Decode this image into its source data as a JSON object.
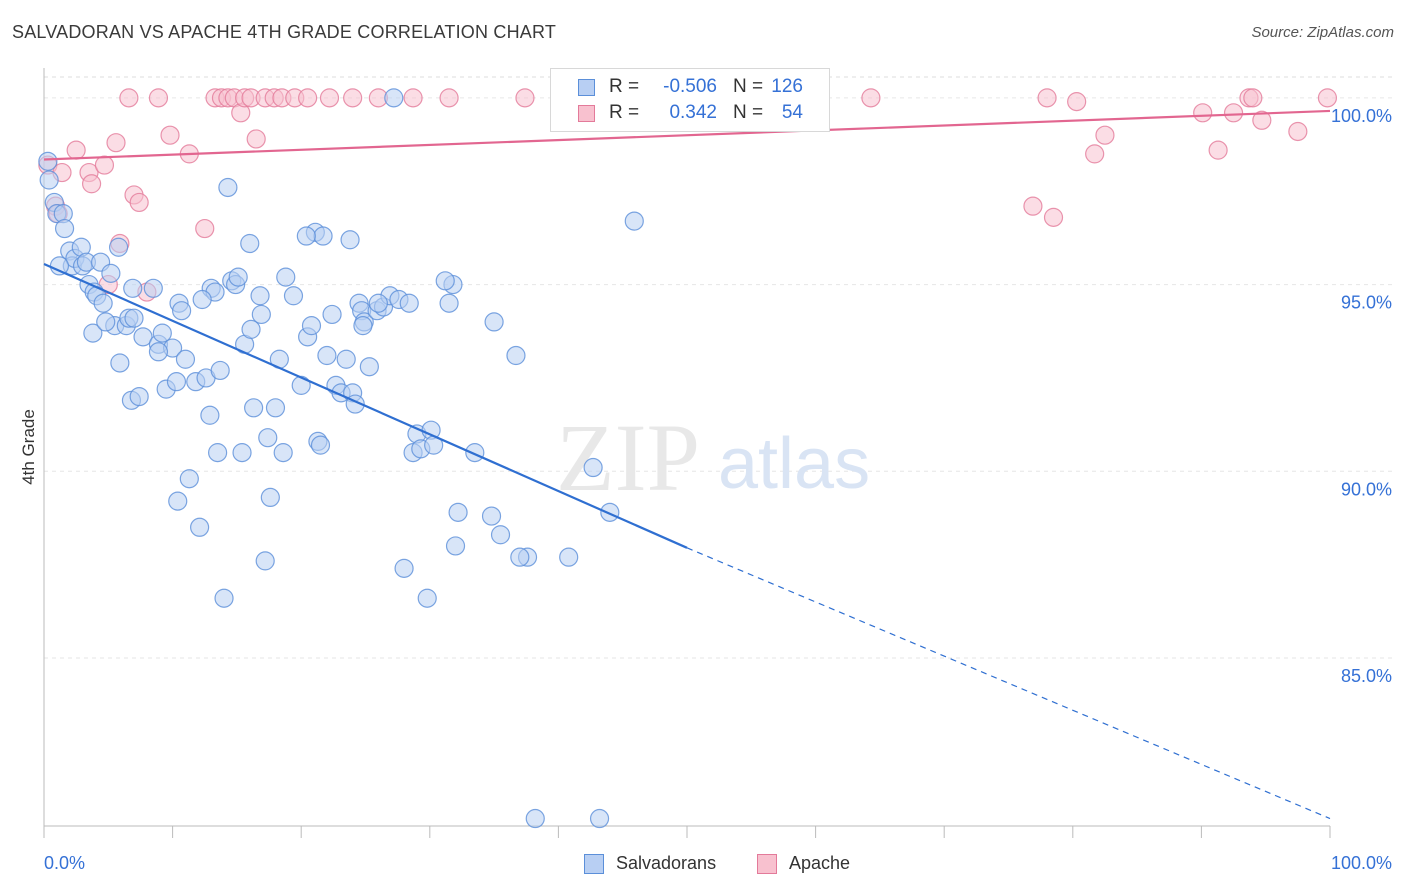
{
  "title": "SALVADORAN VS APACHE 4TH GRADE CORRELATION CHART",
  "source": "Source: ZipAtlas.com",
  "watermark": {
    "zip": "ZIP",
    "atlas": "atlas"
  },
  "legend": {
    "r_label": "R =",
    "n_label": "N =",
    "rows": [
      {
        "name": "Salvadorans",
        "r": "-0.506",
        "n": "126",
        "fill": "#b8cff3",
        "stroke": "#5b8fd9"
      },
      {
        "name": "Apache",
        "r": "0.342",
        "n": "54",
        "fill": "#f8c1cf",
        "stroke": "#e37a9a"
      }
    ]
  },
  "chart_data": {
    "type": "scatter",
    "title": "SALVADORAN VS APACHE 4TH GRADE CORRELATION CHART",
    "xlabel": "",
    "ylabel": "4th Grade",
    "xlim": [
      0,
      100
    ],
    "ylim": [
      80.5,
      100.8
    ],
    "x_tick_labels": [
      "0.0%",
      "100.0%"
    ],
    "y_ticks": [
      85,
      90,
      95,
      100
    ],
    "y_tick_labels": [
      "85.0%",
      "90.0%",
      "95.0%",
      "100.0%"
    ],
    "grid": true,
    "legend_position": "top-center",
    "series": [
      {
        "name": "Salvadorans",
        "color": "#5b8fd9",
        "fill": "#b8cff3",
        "trend": {
          "x0": 0,
          "y0": 95.55,
          "x1": 50,
          "y1": 87.95,
          "dashed_to_x": 100,
          "dashed_to_y": 80.7
        },
        "points": [
          [
            0.3,
            98.3
          ],
          [
            0.4,
            97.8
          ],
          [
            0.8,
            97.2
          ],
          [
            1.0,
            96.9
          ],
          [
            1.5,
            96.9
          ],
          [
            1.6,
            96.5
          ],
          [
            2.0,
            95.9
          ],
          [
            2.2,
            95.5
          ],
          [
            2.4,
            95.7
          ],
          [
            2.9,
            96.0
          ],
          [
            3.0,
            95.5
          ],
          [
            3.3,
            95.6
          ],
          [
            3.5,
            95.0
          ],
          [
            3.8,
            93.7
          ],
          [
            3.9,
            94.8
          ],
          [
            4.1,
            94.7
          ],
          [
            4.4,
            95.6
          ],
          [
            4.6,
            94.5
          ],
          [
            5.2,
            95.3
          ],
          [
            5.5,
            93.9
          ],
          [
            5.9,
            92.9
          ],
          [
            6.4,
            93.9
          ],
          [
            6.6,
            94.1
          ],
          [
            6.8,
            91.9
          ],
          [
            7.0,
            94.1
          ],
          [
            7.4,
            92.0
          ],
          [
            7.7,
            93.6
          ],
          [
            8.5,
            94.9
          ],
          [
            8.9,
            93.4
          ],
          [
            9.2,
            93.7
          ],
          [
            9.5,
            92.2
          ],
          [
            10.0,
            93.3
          ],
          [
            10.3,
            92.4
          ],
          [
            10.5,
            94.5
          ],
          [
            10.7,
            94.3
          ],
          [
            11.0,
            93.0
          ],
          [
            11.3,
            89.8
          ],
          [
            11.8,
            92.4
          ],
          [
            12.1,
            88.5
          ],
          [
            12.6,
            92.5
          ],
          [
            12.9,
            91.5
          ],
          [
            13.0,
            94.9
          ],
          [
            13.3,
            94.8
          ],
          [
            13.5,
            90.5
          ],
          [
            13.7,
            92.7
          ],
          [
            14.0,
            86.6
          ],
          [
            14.3,
            97.6
          ],
          [
            14.6,
            95.1
          ],
          [
            14.9,
            95.0
          ],
          [
            15.1,
            95.2
          ],
          [
            15.4,
            90.5
          ],
          [
            15.6,
            93.4
          ],
          [
            16.1,
            93.8
          ],
          [
            16.3,
            91.7
          ],
          [
            16.8,
            94.7
          ],
          [
            16.9,
            94.2
          ],
          [
            17.2,
            87.6
          ],
          [
            17.4,
            90.9
          ],
          [
            17.6,
            89.3
          ],
          [
            18.0,
            91.7
          ],
          [
            18.3,
            93.0
          ],
          [
            18.6,
            90.5
          ],
          [
            18.8,
            95.2
          ],
          [
            19.4,
            94.7
          ],
          [
            20.0,
            92.3
          ],
          [
            20.5,
            93.6
          ],
          [
            20.8,
            93.9
          ],
          [
            21.1,
            96.4
          ],
          [
            21.3,
            90.8
          ],
          [
            21.5,
            90.7
          ],
          [
            21.7,
            96.3
          ],
          [
            22.0,
            93.1
          ],
          [
            22.4,
            94.2
          ],
          [
            22.7,
            92.3
          ],
          [
            23.1,
            92.1
          ],
          [
            23.5,
            93.0
          ],
          [
            23.8,
            96.2
          ],
          [
            24.0,
            92.1
          ],
          [
            24.2,
            91.8
          ],
          [
            24.5,
            94.5
          ],
          [
            24.7,
            94.3
          ],
          [
            24.9,
            94.0
          ],
          [
            25.3,
            92.8
          ],
          [
            25.9,
            94.3
          ],
          [
            26.4,
            94.4
          ],
          [
            26.9,
            94.7
          ],
          [
            27.2,
            100.0
          ],
          [
            27.6,
            94.6
          ],
          [
            28.0,
            87.4
          ],
          [
            28.4,
            94.5
          ],
          [
            28.7,
            90.5
          ],
          [
            29.0,
            91.0
          ],
          [
            29.3,
            90.6
          ],
          [
            29.8,
            86.6
          ],
          [
            30.1,
            91.1
          ],
          [
            30.3,
            90.7
          ],
          [
            31.5,
            94.5
          ],
          [
            31.8,
            95.0
          ],
          [
            32.0,
            88.0
          ],
          [
            32.2,
            88.9
          ],
          [
            33.5,
            90.5
          ],
          [
            34.8,
            88.8
          ],
          [
            35.0,
            94.0
          ],
          [
            35.5,
            88.3
          ],
          [
            36.7,
            93.1
          ],
          [
            37.6,
            87.7
          ],
          [
            38.2,
            80.7
          ],
          [
            40.8,
            87.7
          ],
          [
            42.7,
            90.1
          ],
          [
            44.0,
            88.9
          ],
          [
            43.2,
            80.7
          ],
          [
            45.9,
            96.7
          ],
          [
            1.2,
            95.5
          ],
          [
            5.8,
            96.0
          ],
          [
            8.9,
            93.2
          ],
          [
            10.4,
            89.2
          ],
          [
            12.3,
            94.6
          ],
          [
            16.0,
            96.1
          ],
          [
            20.4,
            96.3
          ],
          [
            24.8,
            93.9
          ],
          [
            26.0,
            94.5
          ],
          [
            31.2,
            95.1
          ],
          [
            37.0,
            87.7
          ],
          [
            4.8,
            94.0
          ],
          [
            6.9,
            94.9
          ]
        ]
      },
      {
        "name": "Apache",
        "color": "#e37a9a",
        "fill": "#f8c1cf",
        "trend": {
          "x0": 0,
          "y0": 98.35,
          "x1": 100,
          "y1": 99.65
        },
        "points": [
          [
            0.3,
            98.2
          ],
          [
            0.9,
            97.1
          ],
          [
            1.1,
            96.9
          ],
          [
            1.4,
            98.0
          ],
          [
            2.5,
            98.6
          ],
          [
            3.5,
            98.0
          ],
          [
            3.7,
            97.7
          ],
          [
            4.7,
            98.2
          ],
          [
            5.0,
            95.0
          ],
          [
            5.6,
            98.8
          ],
          [
            5.9,
            96.1
          ],
          [
            6.6,
            100.0
          ],
          [
            7.0,
            97.4
          ],
          [
            7.4,
            97.2
          ],
          [
            8.0,
            94.8
          ],
          [
            8.9,
            100.0
          ],
          [
            9.8,
            99.0
          ],
          [
            11.3,
            98.5
          ],
          [
            12.5,
            96.5
          ],
          [
            13.3,
            100.0
          ],
          [
            13.8,
            100.0
          ],
          [
            14.3,
            100.0
          ],
          [
            14.8,
            100.0
          ],
          [
            15.3,
            99.6
          ],
          [
            15.6,
            100.0
          ],
          [
            16.1,
            100.0
          ],
          [
            16.5,
            98.9
          ],
          [
            17.2,
            100.0
          ],
          [
            17.9,
            100.0
          ],
          [
            18.5,
            100.0
          ],
          [
            19.5,
            100.0
          ],
          [
            20.5,
            100.0
          ],
          [
            22.2,
            100.0
          ],
          [
            24.0,
            100.0
          ],
          [
            26.0,
            100.0
          ],
          [
            28.7,
            100.0
          ],
          [
            31.5,
            100.0
          ],
          [
            37.4,
            100.0
          ],
          [
            40.8,
            100.0
          ],
          [
            64.3,
            100.0
          ],
          [
            76.9,
            97.1
          ],
          [
            78.0,
            100.0
          ],
          [
            78.5,
            96.8
          ],
          [
            80.3,
            99.9
          ],
          [
            81.7,
            98.5
          ],
          [
            82.5,
            99.0
          ],
          [
            90.1,
            99.6
          ],
          [
            91.3,
            98.6
          ],
          [
            92.5,
            99.6
          ],
          [
            93.7,
            100.0
          ],
          [
            94.0,
            100.0
          ],
          [
            94.7,
            99.4
          ],
          [
            97.5,
            99.1
          ],
          [
            99.8,
            100.0
          ]
        ]
      }
    ]
  }
}
